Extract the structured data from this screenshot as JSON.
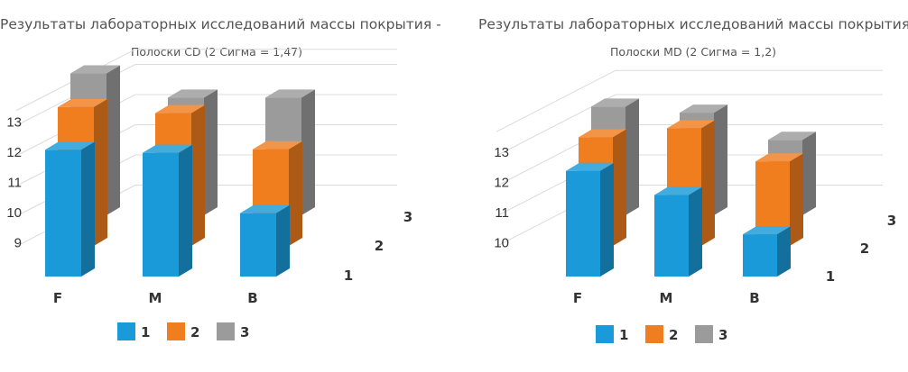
{
  "colors": {
    "series1": "#1a9ad8",
    "series2": "#f07d1e",
    "series3": "#9b9b9b",
    "grid": "#dcdcdc",
    "text": "#333333"
  },
  "chart_data": [
    {
      "type": "bar",
      "variant": "3d-column",
      "title": "Результаты лабораторных исследований массы покрытия -",
      "subtitle": "Полоски CD (2 Сигма = 1,47)",
      "categories": [
        "F",
        "M",
        "B"
      ],
      "depth_labels": [
        "1",
        "2",
        "3"
      ],
      "y_ticks": [
        "9",
        "10",
        "11",
        "12",
        "13"
      ],
      "ylim": [
        8,
        13.5
      ],
      "series": [
        {
          "name": "1",
          "values": [
            12.2,
            12.1,
            10.1
          ]
        },
        {
          "name": "2",
          "values": [
            12.6,
            12.4,
            11.2
          ]
        },
        {
          "name": "3",
          "values": [
            12.7,
            11.9,
            11.9
          ]
        }
      ],
      "legend": [
        "1",
        "2",
        "3"
      ],
      "legend_position": "bottom",
      "grid": true
    },
    {
      "type": "bar",
      "variant": "3d-column",
      "title": "Результаты лабораторных исследований массы покрытия -",
      "subtitle": "Полоски MD (2 Сигма = 1,2)",
      "categories": [
        "F",
        "M",
        "B"
      ],
      "depth_labels": [
        "1",
        "2",
        "3"
      ],
      "y_ticks": [
        "10",
        "11",
        "12",
        "13"
      ],
      "ylim": [
        9,
        13.8
      ],
      "series": [
        {
          "name": "1",
          "values": [
            12.5,
            11.7,
            10.4
          ]
        },
        {
          "name": "2",
          "values": [
            12.6,
            12.9,
            11.8
          ]
        },
        {
          "name": "3",
          "values": [
            12.6,
            12.4,
            11.5
          ]
        }
      ],
      "legend": [
        "1",
        "2",
        "3"
      ],
      "legend_position": "bottom",
      "grid": true
    }
  ]
}
